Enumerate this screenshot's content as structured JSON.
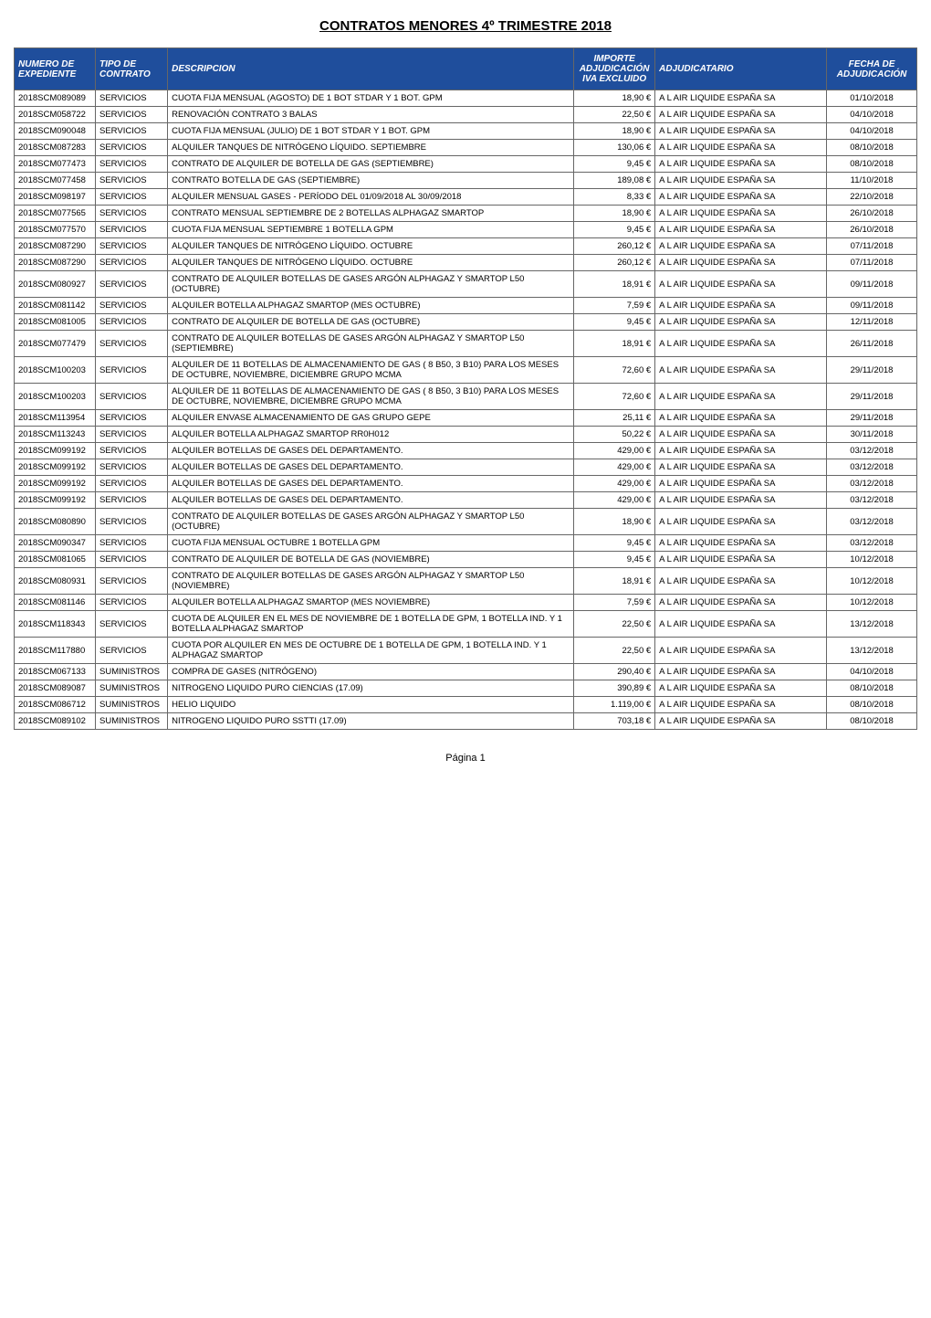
{
  "title": "CONTRATOS MENORES 4º TRIMESTRE 2018",
  "footer": "Página 1",
  "colors": {
    "header_bg": "#1f4e9c",
    "header_fg": "#ffffff",
    "border": "#666666",
    "text": "#000000",
    "page_bg": "#ffffff"
  },
  "columns": [
    {
      "key": "numero",
      "label": "NUMERO DE EXPEDIENTE",
      "width_pct": 9,
      "align": "left"
    },
    {
      "key": "tipo",
      "label": "TIPO DE CONTRATO",
      "width_pct": 8,
      "align": "left"
    },
    {
      "key": "descripcion",
      "label": "DESCRIPCION",
      "width_pct": 45,
      "align": "left"
    },
    {
      "key": "importe",
      "label": "IMPORTE ADJUDICACIÓN IVA EXCLUIDO",
      "width_pct": 9,
      "align": "right"
    },
    {
      "key": "adjudicatario",
      "label": "ADJUDICATARIO",
      "width_pct": 19,
      "align": "left"
    },
    {
      "key": "fecha",
      "label": "FECHA DE ADJUDICACIÓN",
      "width_pct": 10,
      "align": "center"
    }
  ],
  "rows": [
    {
      "numero": "2018SCM089089",
      "tipo": "SERVICIOS",
      "descripcion": "CUOTA FIJA MENSUAL (AGOSTO) DE 1 BOT STDAR Y 1 BOT. GPM",
      "importe": "18,90 €",
      "adjudicatario": "A L AIR LIQUIDE ESPAÑA SA",
      "fecha": "01/10/2018"
    },
    {
      "numero": "2018SCM058722",
      "tipo": "SERVICIOS",
      "descripcion": "RENOVACIÓN CONTRATO 3 BALAS",
      "importe": "22,50 €",
      "adjudicatario": "A L AIR LIQUIDE ESPAÑA SA",
      "fecha": "04/10/2018"
    },
    {
      "numero": "2018SCM090048",
      "tipo": "SERVICIOS",
      "descripcion": "CUOTA FIJA MENSUAL (JULIO) DE 1 BOT STDAR Y 1 BOT. GPM",
      "importe": "18,90 €",
      "adjudicatario": "A L AIR LIQUIDE ESPAÑA SA",
      "fecha": "04/10/2018"
    },
    {
      "numero": "2018SCM087283",
      "tipo": "SERVICIOS",
      "descripcion": "ALQUILER TANQUES DE NITRÓGENO LÍQUIDO. SEPTIEMBRE",
      "importe": "130,06 €",
      "adjudicatario": "A L AIR LIQUIDE ESPAÑA SA",
      "fecha": "08/10/2018"
    },
    {
      "numero": "2018SCM077473",
      "tipo": "SERVICIOS",
      "descripcion": "CONTRATO DE ALQUILER DE BOTELLA DE GAS (SEPTIEMBRE)",
      "importe": "9,45 €",
      "adjudicatario": "A L AIR LIQUIDE ESPAÑA SA",
      "fecha": "08/10/2018"
    },
    {
      "numero": "2018SCM077458",
      "tipo": "SERVICIOS",
      "descripcion": "CONTRATO BOTELLA DE GAS (SEPTIEMBRE)",
      "importe": "189,08 €",
      "adjudicatario": "A L AIR LIQUIDE ESPAÑA SA",
      "fecha": "11/10/2018"
    },
    {
      "numero": "2018SCM098197",
      "tipo": "SERVICIOS",
      "descripcion": "ALQUILER MENSUAL GASES - PERÍODO DEL 01/09/2018 AL 30/09/2018",
      "importe": "8,33 €",
      "adjudicatario": "A L AIR LIQUIDE ESPAÑA SA",
      "fecha": "22/10/2018"
    },
    {
      "numero": "2018SCM077565",
      "tipo": "SERVICIOS",
      "descripcion": "CONTRATO MENSUAL SEPTIEMBRE DE 2 BOTELLAS ALPHAGAZ SMARTOP",
      "importe": "18,90 €",
      "adjudicatario": "A L AIR LIQUIDE ESPAÑA SA",
      "fecha": "26/10/2018"
    },
    {
      "numero": "2018SCM077570",
      "tipo": "SERVICIOS",
      "descripcion": "CUOTA FIJA MENSUAL SEPTIEMBRE 1 BOTELLA GPM",
      "importe": "9,45 €",
      "adjudicatario": "A L AIR LIQUIDE ESPAÑA SA",
      "fecha": "26/10/2018"
    },
    {
      "numero": "2018SCM087290",
      "tipo": "SERVICIOS",
      "descripcion": "ALQUILER TANQUES DE NITRÓGENO LÍQUIDO. OCTUBRE",
      "importe": "260,12 €",
      "adjudicatario": "A L AIR LIQUIDE ESPAÑA SA",
      "fecha": "07/11/2018"
    },
    {
      "numero": "2018SCM087290",
      "tipo": "SERVICIOS",
      "descripcion": "ALQUILER TANQUES DE NITRÓGENO LÍQUIDO. OCTUBRE",
      "importe": "260,12 €",
      "adjudicatario": "A L AIR LIQUIDE ESPAÑA SA",
      "fecha": "07/11/2018"
    },
    {
      "numero": "2018SCM080927",
      "tipo": "SERVICIOS",
      "descripcion": "CONTRATO DE ALQUILER BOTELLAS DE GASES ARGÓN ALPHAGAZ Y SMARTOP L50 (OCTUBRE)",
      "importe": "18,91 €",
      "adjudicatario": "A L AIR LIQUIDE ESPAÑA SA",
      "fecha": "09/11/2018"
    },
    {
      "numero": "2018SCM081142",
      "tipo": "SERVICIOS",
      "descripcion": "ALQUILER BOTELLA ALPHAGAZ SMARTOP (MES OCTUBRE)",
      "importe": "7,59 €",
      "adjudicatario": "A L AIR LIQUIDE ESPAÑA SA",
      "fecha": "09/11/2018"
    },
    {
      "numero": "2018SCM081005",
      "tipo": "SERVICIOS",
      "descripcion": "CONTRATO DE ALQUILER DE BOTELLA DE GAS (OCTUBRE)",
      "importe": "9,45 €",
      "adjudicatario": "A L AIR LIQUIDE ESPAÑA SA",
      "fecha": "12/11/2018"
    },
    {
      "numero": "2018SCM077479",
      "tipo": "SERVICIOS",
      "descripcion": "CONTRATO DE ALQUILER BOTELLAS DE GASES ARGÓN ALPHAGAZ Y SMARTOP L50 (SEPTIEMBRE)",
      "importe": "18,91 €",
      "adjudicatario": "A L AIR LIQUIDE ESPAÑA SA",
      "fecha": "26/11/2018"
    },
    {
      "numero": "2018SCM100203",
      "tipo": "SERVICIOS",
      "descripcion": "ALQUILER DE 11 BOTELLAS DE ALMACENAMIENTO DE GAS  ( 8 B50, 3 B10)  PARA LOS MESES DE OCTUBRE, NOVIEMBRE, DICIEMBRE GRUPO MCMA",
      "importe": "72,60 €",
      "adjudicatario": "A L AIR LIQUIDE ESPAÑA SA",
      "fecha": "29/11/2018"
    },
    {
      "numero": "2018SCM100203",
      "tipo": "SERVICIOS",
      "descripcion": "ALQUILER DE 11 BOTELLAS DE ALMACENAMIENTO DE GAS  ( 8 B50, 3 B10)  PARA LOS MESES DE OCTUBRE, NOVIEMBRE, DICIEMBRE GRUPO MCMA",
      "importe": "72,60 €",
      "adjudicatario": "A L AIR LIQUIDE ESPAÑA SA",
      "fecha": "29/11/2018"
    },
    {
      "numero": "2018SCM113954",
      "tipo": "SERVICIOS",
      "descripcion": "ALQUILER ENVASE ALMACENAMIENTO DE GAS GRUPO GEPE",
      "importe": "25,11 €",
      "adjudicatario": "A L AIR LIQUIDE ESPAÑA SA",
      "fecha": "29/11/2018"
    },
    {
      "numero": "2018SCM113243",
      "tipo": "SERVICIOS",
      "descripcion": "ALQUILER BOTELLA ALPHAGAZ SMARTOP RR0H012",
      "importe": "50,22 €",
      "adjudicatario": "A L AIR LIQUIDE ESPAÑA SA",
      "fecha": "30/11/2018"
    },
    {
      "numero": "2018SCM099192",
      "tipo": "SERVICIOS",
      "descripcion": "ALQUILER BOTELLAS DE GASES DEL DEPARTAMENTO.",
      "importe": "429,00 €",
      "adjudicatario": "A L AIR LIQUIDE ESPAÑA SA",
      "fecha": "03/12/2018"
    },
    {
      "numero": "2018SCM099192",
      "tipo": "SERVICIOS",
      "descripcion": "ALQUILER BOTELLAS DE GASES DEL DEPARTAMENTO.",
      "importe": "429,00 €",
      "adjudicatario": "A L AIR LIQUIDE ESPAÑA SA",
      "fecha": "03/12/2018"
    },
    {
      "numero": "2018SCM099192",
      "tipo": "SERVICIOS",
      "descripcion": "ALQUILER BOTELLAS DE GASES DEL DEPARTAMENTO.",
      "importe": "429,00 €",
      "adjudicatario": "A L AIR LIQUIDE ESPAÑA SA",
      "fecha": "03/12/2018"
    },
    {
      "numero": "2018SCM099192",
      "tipo": "SERVICIOS",
      "descripcion": "ALQUILER BOTELLAS DE GASES DEL DEPARTAMENTO.",
      "importe": "429,00 €",
      "adjudicatario": "A L AIR LIQUIDE ESPAÑA SA",
      "fecha": "03/12/2018"
    },
    {
      "numero": "2018SCM080890",
      "tipo": "SERVICIOS",
      "descripcion": "CONTRATO DE ALQUILER BOTELLAS DE GASES ARGÓN ALPHAGAZ Y SMARTOP L50 (OCTUBRE)",
      "importe": "18,90 €",
      "adjudicatario": "A L AIR LIQUIDE ESPAÑA SA",
      "fecha": "03/12/2018"
    },
    {
      "numero": "2018SCM090347",
      "tipo": "SERVICIOS",
      "descripcion": "CUOTA FIJA MENSUAL OCTUBRE 1 BOTELLA GPM",
      "importe": "9,45 €",
      "adjudicatario": "A L AIR LIQUIDE ESPAÑA SA",
      "fecha": "03/12/2018"
    },
    {
      "numero": "2018SCM081065",
      "tipo": "SERVICIOS",
      "descripcion": "CONTRATO DE ALQUILER DE BOTELLA DE GAS (NOVIEMBRE)",
      "importe": "9,45 €",
      "adjudicatario": "A L AIR LIQUIDE ESPAÑA SA",
      "fecha": "10/12/2018"
    },
    {
      "numero": "2018SCM080931",
      "tipo": "SERVICIOS",
      "descripcion": "CONTRATO DE ALQUILER BOTELLAS DE GASES ARGÓN ALPHAGAZ Y SMARTOP L50 (NOVIEMBRE)",
      "importe": "18,91 €",
      "adjudicatario": "A L AIR LIQUIDE ESPAÑA SA",
      "fecha": "10/12/2018"
    },
    {
      "numero": "2018SCM081146",
      "tipo": "SERVICIOS",
      "descripcion": "ALQUILER BOTELLA ALPHAGAZ SMARTOP (MES NOVIEMBRE)",
      "importe": "7,59 €",
      "adjudicatario": "A L AIR LIQUIDE ESPAÑA SA",
      "fecha": "10/12/2018"
    },
    {
      "numero": "2018SCM118343",
      "tipo": "SERVICIOS",
      "descripcion": "CUOTA DE ALQUILER EN EL MES DE NOVIEMBRE DE 1 BOTELLA DE GPM, 1 BOTELLA IND. Y 1 BOTELLA ALPHAGAZ SMARTOP",
      "importe": "22,50 €",
      "adjudicatario": "A L AIR LIQUIDE ESPAÑA SA",
      "fecha": "13/12/2018"
    },
    {
      "numero": "2018SCM117880",
      "tipo": "SERVICIOS",
      "descripcion": "CUOTA POR ALQUILER EN MES DE OCTUBRE DE 1 BOTELLA DE GPM, 1 BOTELLA IND. Y 1 ALPHAGAZ SMARTOP",
      "importe": "22,50 €",
      "adjudicatario": "A L AIR LIQUIDE ESPAÑA SA",
      "fecha": "13/12/2018"
    },
    {
      "numero": "2018SCM067133",
      "tipo": "SUMINISTROS",
      "descripcion": "COMPRA DE GASES (NITRÓGENO)",
      "importe": "290,40 €",
      "adjudicatario": "A L AIR LIQUIDE ESPAÑA SA",
      "fecha": "04/10/2018"
    },
    {
      "numero": "2018SCM089087",
      "tipo": "SUMINISTROS",
      "descripcion": "NITROGENO LIQUIDO PURO CIENCIAS (17.09)",
      "importe": "390,89 €",
      "adjudicatario": "A L AIR LIQUIDE ESPAÑA SA",
      "fecha": "08/10/2018"
    },
    {
      "numero": "2018SCM086712",
      "tipo": "SUMINISTROS",
      "descripcion": "HELIO LIQUIDO",
      "importe": "1.119,00 €",
      "adjudicatario": "A L AIR LIQUIDE ESPAÑA SA",
      "fecha": "08/10/2018"
    },
    {
      "numero": "2018SCM089102",
      "tipo": "SUMINISTROS",
      "descripcion": "NITROGENO LIQUIDO PURO SSTTI (17.09)",
      "importe": "703,18 €",
      "adjudicatario": "A L AIR LIQUIDE ESPAÑA SA",
      "fecha": "08/10/2018"
    }
  ]
}
